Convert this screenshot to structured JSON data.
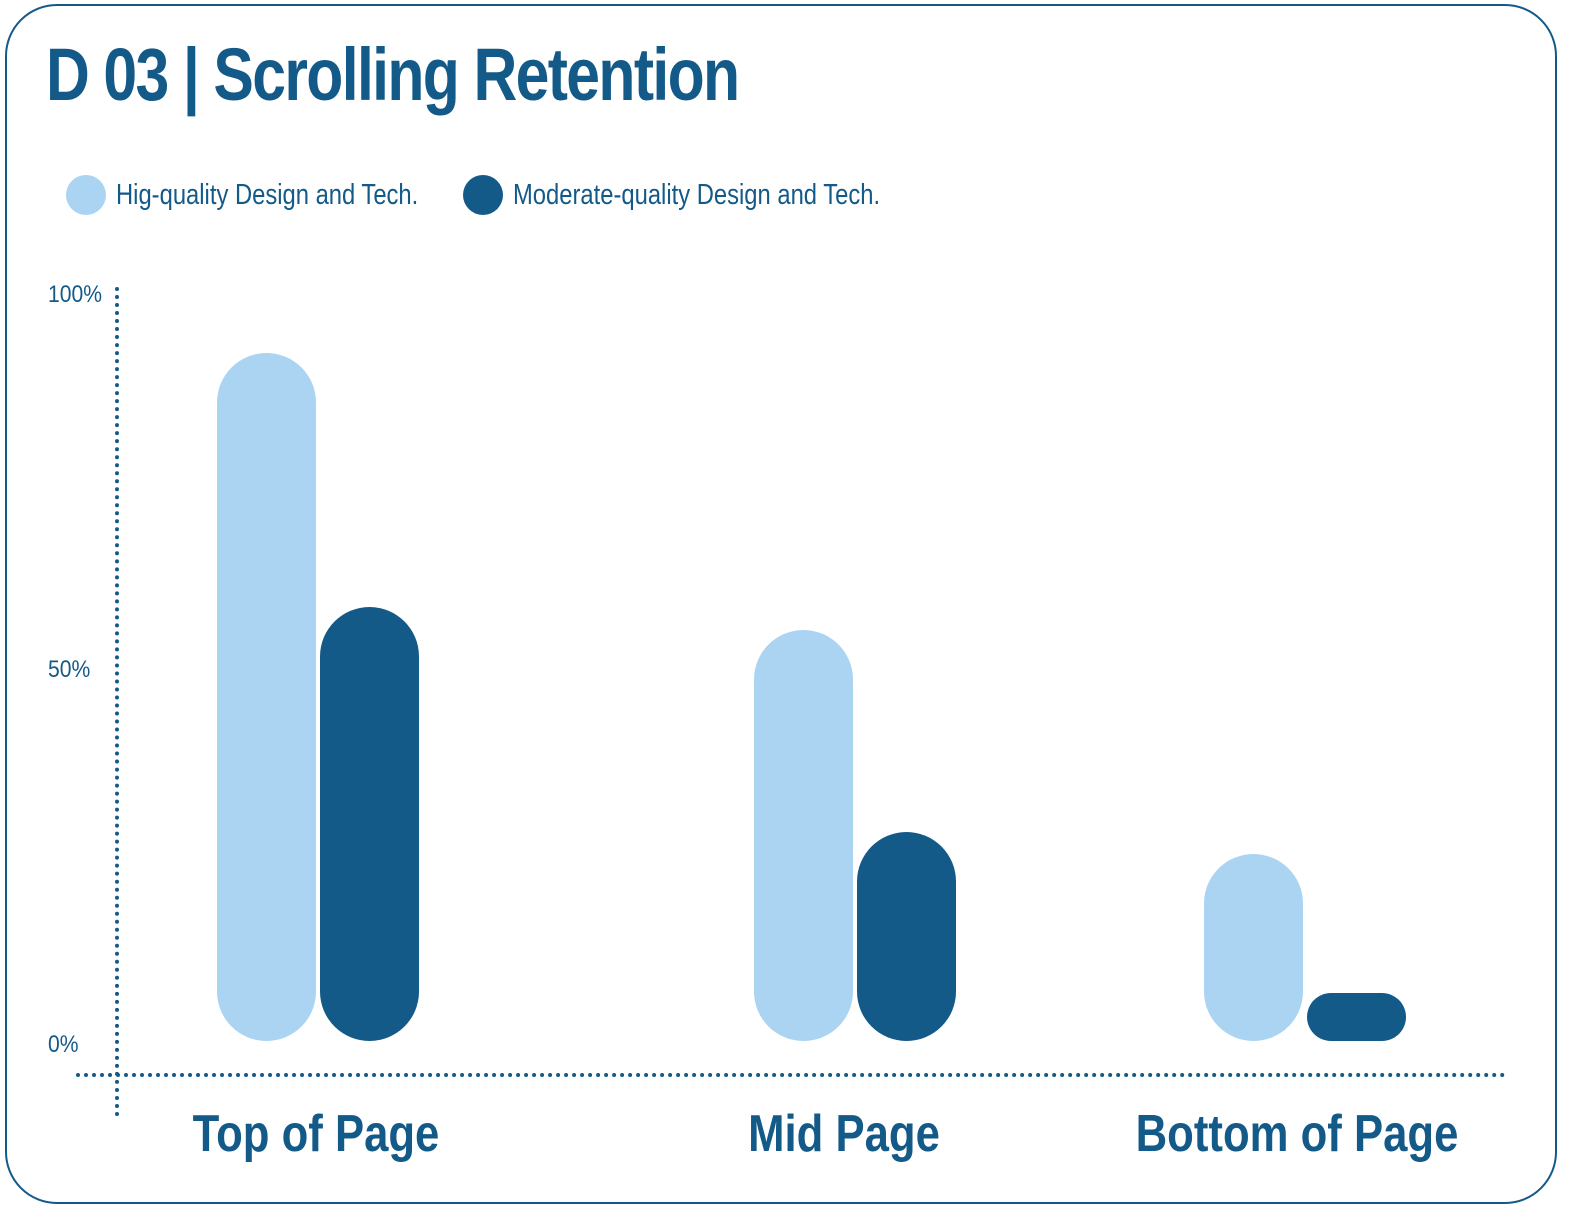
{
  "title": "D 03 | Scrolling Retention",
  "colors": {
    "high": "#aad4f2",
    "moderate": "#135a89",
    "text": "#135a89",
    "frame": "#135a89"
  },
  "legend": [
    {
      "label": "Hig-quality Design and Tech.",
      "color": "#aad4f2"
    },
    {
      "label": "Moderate-quality Design and Tech.",
      "color": "#135a89"
    }
  ],
  "yaxis": {
    "ticks": [
      "100%",
      "50%",
      "0%"
    ]
  },
  "xaxis": {
    "labels": [
      "Top of Page",
      "Mid Page",
      "Bottom of Page"
    ]
  },
  "chart_data": {
    "type": "bar",
    "title": "D 03 | Scrolling Retention",
    "categories": [
      "Top of Page",
      "Mid Page",
      "Bottom of Page"
    ],
    "series": [
      {
        "name": "Hig-quality Design and Tech.",
        "color": "#aad4f2",
        "values": [
          92,
          55,
          25
        ]
      },
      {
        "name": "Moderate-quality Design and Tech.",
        "color": "#135a89",
        "values": [
          58,
          28,
          6
        ]
      }
    ],
    "xlabel": "",
    "ylabel": "",
    "yticks": [
      "0%",
      "50%",
      "100%"
    ],
    "ylim": [
      0,
      100
    ],
    "grid": false,
    "legend_position": "top-left"
  }
}
